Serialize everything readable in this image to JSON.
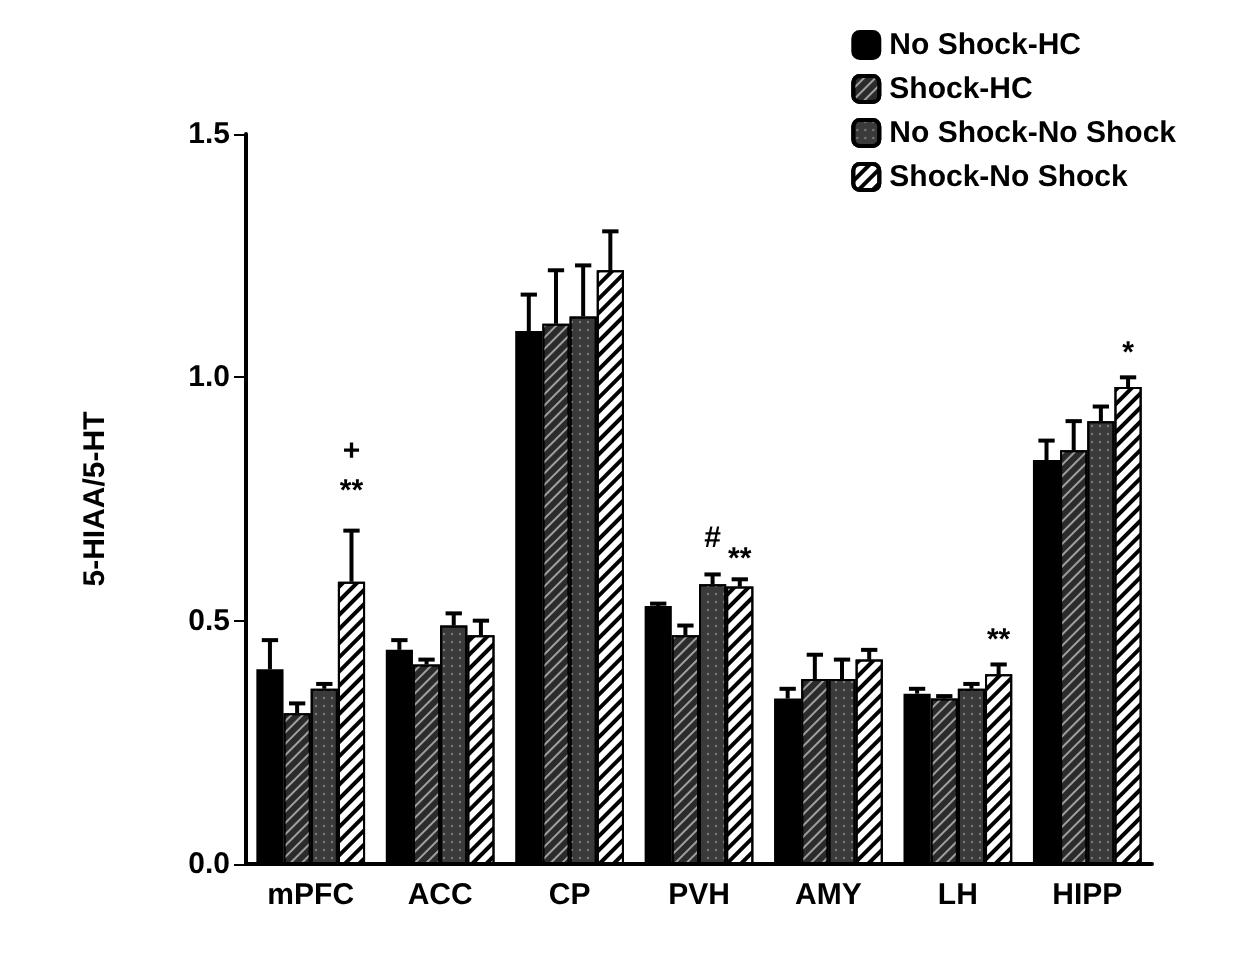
{
  "chart_data": {
    "type": "bar",
    "ylabel": "5-HIAA/5-HT",
    "categories": [
      "mPFC",
      "ACC",
      "CP",
      "PVH",
      "AMY",
      "LH",
      "HIPP"
    ],
    "series": [
      {
        "name": "No Shock-HC",
        "color": "#000000",
        "values": [
          0.4,
          0.44,
          1.095,
          0.53,
          0.34,
          0.35,
          0.83
        ],
        "errors": [
          [
            0.4,
            0.46
          ],
          [
            0.44,
            0.46
          ],
          [
            1.095,
            1.17
          ],
          [
            0.53,
            0.535
          ],
          [
            0.34,
            0.36
          ],
          [
            0.35,
            0.36
          ],
          [
            0.83,
            0.87
          ]
        ]
      },
      {
        "name": "Shock-HC",
        "color": "#2b2b2b",
        "values": [
          0.31,
          0.41,
          1.11,
          0.47,
          0.38,
          0.34,
          0.85
        ],
        "errors": [
          [
            0.31,
            0.33
          ],
          [
            0.41,
            0.42
          ],
          [
            1.11,
            1.22
          ],
          [
            0.47,
            0.49
          ],
          [
            0.38,
            0.43
          ],
          [
            0.34,
            0.345
          ],
          [
            0.85,
            0.91
          ]
        ]
      },
      {
        "name": "No Shock-No Shock",
        "color": "#3a3a3a",
        "values": [
          0.36,
          0.49,
          1.125,
          0.575,
          0.38,
          0.36,
          0.91
        ],
        "errors": [
          [
            0.36,
            0.37
          ],
          [
            0.49,
            0.515
          ],
          [
            1.125,
            1.23
          ],
          [
            0.575,
            0.595
          ],
          [
            0.38,
            0.42
          ],
          [
            0.36,
            0.37
          ],
          [
            0.91,
            0.94
          ]
        ]
      },
      {
        "name": "Shock-No Shock",
        "color": "#ffffff",
        "values": [
          0.58,
          0.47,
          1.22,
          0.57,
          0.42,
          0.39,
          0.98
        ],
        "errors": [
          [
            0.58,
            0.685
          ],
          [
            0.47,
            0.5
          ],
          [
            1.22,
            1.3
          ],
          [
            0.57,
            0.585
          ],
          [
            0.42,
            0.44
          ],
          [
            0.39,
            0.41
          ],
          [
            0.98,
            1.0
          ]
        ]
      }
    ],
    "annotations": [
      "+",
      "**",
      "#",
      "**",
      "**",
      "*"
    ],
    "ylim": [
      0,
      1.5
    ],
    "yticks": [
      {
        "value": 0,
        "label": "0.0"
      },
      {
        "value": 0.5,
        "label": "0.5"
      },
      {
        "value": 1,
        "label": "1.0"
      },
      {
        "value": 1.5,
        "label": "1.5"
      }
    ],
    "grid": false,
    "legend": "top right"
  }
}
